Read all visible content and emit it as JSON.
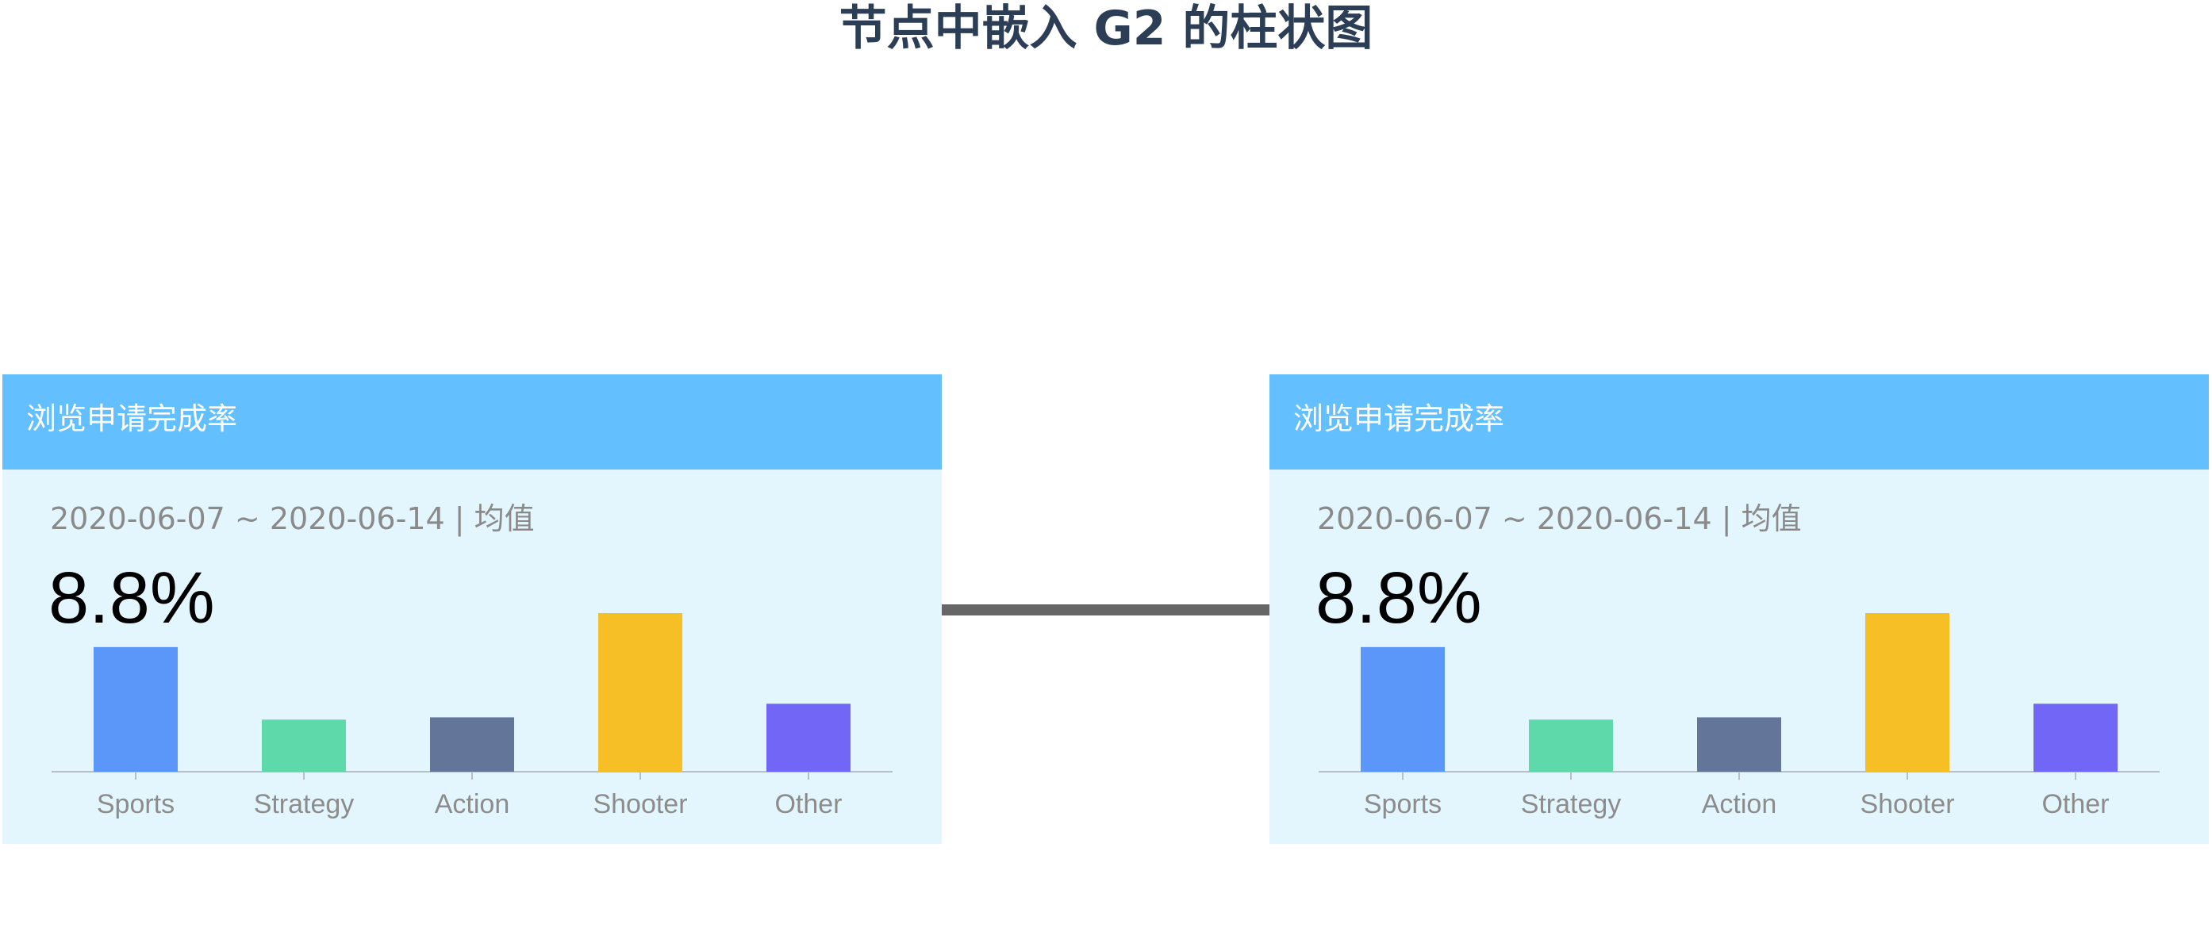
{
  "title": "节点中嵌入 G2 的柱状图",
  "nodes": [
    {
      "header": "浏览申请完成率",
      "date_range": "2020-06-07 ~ 2020-06-14 | 均值",
      "value": "8.8%",
      "chart_data": {
        "type": "bar",
        "categories": [
          "Sports",
          "Strategy",
          "Action",
          "Shooter",
          "Other"
        ],
        "values": [
          275,
          115,
          120,
          350,
          150
        ],
        "colors": [
          "#5b97f9",
          "#5ed9a9",
          "#63769a",
          "#f6bf25",
          "#7166f6"
        ],
        "ylim": [
          0,
          350
        ],
        "grid": false,
        "legend": "none"
      }
    },
    {
      "header": "浏览申请完成率",
      "date_range": "2020-06-07 ~ 2020-06-14 | 均值",
      "value": "8.8%",
      "chart_data": {
        "type": "bar",
        "categories": [
          "Sports",
          "Strategy",
          "Action",
          "Shooter",
          "Other"
        ],
        "values": [
          275,
          115,
          120,
          350,
          150
        ],
        "colors": [
          "#5b97f9",
          "#5ed9a9",
          "#63769a",
          "#f6bf25",
          "#7166f6"
        ],
        "ylim": [
          0,
          350
        ],
        "grid": false,
        "legend": "none"
      }
    }
  ],
  "edge": {
    "color": "#666666"
  }
}
